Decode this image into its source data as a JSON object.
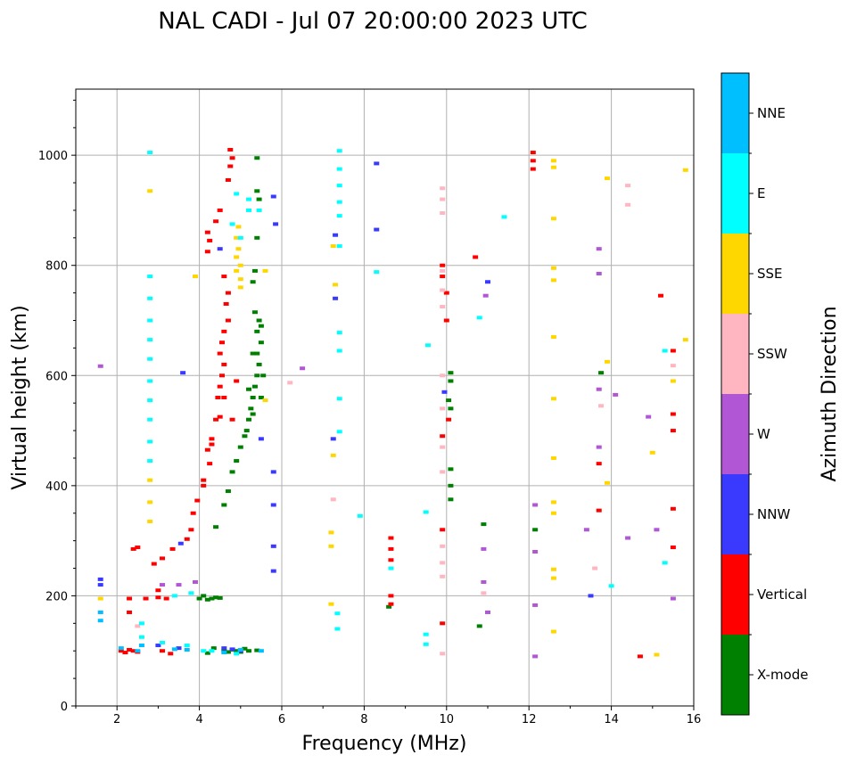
{
  "chart_data": {
    "type": "scatter",
    "title": "NAL CADI - Jul 07 20:00:00 2023 UTC",
    "xlabel": "Frequency (MHz)",
    "ylabel": "Virtual height (km)",
    "xlim": [
      1,
      16
    ],
    "ylim": [
      0,
      1120
    ],
    "xticks": [
      2,
      4,
      6,
      8,
      10,
      12,
      14,
      16
    ],
    "yticks": [
      0,
      200,
      400,
      600,
      800,
      1000
    ],
    "grid": true,
    "colorbar": {
      "label": "Azimuth Direction",
      "categories": [
        {
          "name": "X-mode",
          "color": "#008000"
        },
        {
          "name": "Vertical",
          "color": "#ff0000"
        },
        {
          "name": "NNW",
          "color": "#3a3aff"
        },
        {
          "name": "W",
          "color": "#b157d6"
        },
        {
          "name": "SSW",
          "color": "#ffb6c1"
        },
        {
          "name": "SSE",
          "color": "#ffd700"
        },
        {
          "name": "E",
          "color": "#00ffff"
        },
        {
          "name": "NNE",
          "color": "#00bfff"
        }
      ]
    },
    "series": [
      {
        "name": "X-mode",
        "points": [
          [
            4.6,
            100
          ],
          [
            4.7,
            98
          ],
          [
            4.8,
            102
          ],
          [
            4.9,
            100
          ],
          [
            5.0,
            98
          ],
          [
            5.1,
            104
          ],
          [
            5.2,
            100
          ],
          [
            5.4,
            101
          ],
          [
            4.2,
            96
          ],
          [
            4.35,
            105
          ],
          [
            4.3,
            195
          ],
          [
            4.4,
            197
          ],
          [
            4.2,
            193
          ],
          [
            4.0,
            195
          ],
          [
            4.5,
            196
          ],
          [
            4.1,
            200
          ],
          [
            4.4,
            325
          ],
          [
            4.6,
            365
          ],
          [
            4.7,
            390
          ],
          [
            4.8,
            425
          ],
          [
            4.9,
            445
          ],
          [
            5.0,
            470
          ],
          [
            5.1,
            490
          ],
          [
            5.15,
            500
          ],
          [
            5.2,
            520
          ],
          [
            5.25,
            540
          ],
          [
            5.3,
            560
          ],
          [
            5.35,
            580
          ],
          [
            5.4,
            600
          ],
          [
            5.45,
            620
          ],
          [
            5.3,
            640
          ],
          [
            5.5,
            660
          ],
          [
            5.4,
            680
          ],
          [
            5.45,
            700
          ],
          [
            5.35,
            715
          ],
          [
            5.3,
            770
          ],
          [
            5.35,
            790
          ],
          [
            5.4,
            850
          ],
          [
            5.45,
            920
          ],
          [
            5.4,
            935
          ],
          [
            5.4,
            995
          ],
          [
            5.2,
            575
          ],
          [
            5.3,
            530
          ],
          [
            5.5,
            560
          ],
          [
            5.4,
            640
          ],
          [
            5.55,
            600
          ],
          [
            5.5,
            690
          ],
          [
            10.1,
            375
          ],
          [
            10.1,
            400
          ],
          [
            10.1,
            430
          ],
          [
            10.1,
            540
          ],
          [
            10.1,
            590
          ],
          [
            10.05,
            555
          ],
          [
            10.1,
            605
          ],
          [
            8.6,
            180
          ],
          [
            10.8,
            145
          ],
          [
            10.9,
            330
          ],
          [
            12.15,
            320
          ],
          [
            13.75,
            605
          ]
        ]
      },
      {
        "name": "Vertical",
        "points": [
          [
            2.1,
            100
          ],
          [
            2.2,
            97
          ],
          [
            2.3,
            102
          ],
          [
            2.4,
            100
          ],
          [
            2.5,
            98
          ],
          [
            3.1,
            100
          ],
          [
            3.3,
            95
          ],
          [
            2.3,
            195
          ],
          [
            2.7,
            195
          ],
          [
            3.0,
            197
          ],
          [
            3.2,
            195
          ],
          [
            2.3,
            170
          ],
          [
            3.0,
            210
          ],
          [
            2.4,
            285
          ],
          [
            2.5,
            288
          ],
          [
            2.9,
            258
          ],
          [
            3.1,
            268
          ],
          [
            3.35,
            285
          ],
          [
            3.7,
            303
          ],
          [
            3.8,
            320
          ],
          [
            3.85,
            350
          ],
          [
            3.95,
            373
          ],
          [
            4.1,
            400
          ],
          [
            4.1,
            410
          ],
          [
            4.25,
            440
          ],
          [
            4.2,
            465
          ],
          [
            4.3,
            475
          ],
          [
            4.3,
            485
          ],
          [
            4.4,
            520
          ],
          [
            4.5,
            525
          ],
          [
            4.45,
            560
          ],
          [
            4.5,
            580
          ],
          [
            4.55,
            600
          ],
          [
            4.6,
            620
          ],
          [
            4.5,
            640
          ],
          [
            4.55,
            660
          ],
          [
            4.6,
            680
          ],
          [
            4.7,
            700
          ],
          [
            4.65,
            730
          ],
          [
            4.7,
            750
          ],
          [
            4.6,
            780
          ],
          [
            4.2,
            825
          ],
          [
            4.25,
            845
          ],
          [
            4.2,
            860
          ],
          [
            4.4,
            880
          ],
          [
            4.5,
            900
          ],
          [
            4.7,
            955
          ],
          [
            4.75,
            980
          ],
          [
            4.8,
            995
          ],
          [
            4.75,
            1010
          ],
          [
            4.8,
            520
          ],
          [
            4.9,
            590
          ],
          [
            4.6,
            560
          ],
          [
            8.65,
            265
          ],
          [
            8.65,
            285
          ],
          [
            8.65,
            305
          ],
          [
            8.65,
            200
          ],
          [
            8.65,
            185
          ],
          [
            10.0,
            750
          ],
          [
            10.0,
            700
          ],
          [
            9.9,
            800
          ],
          [
            9.9,
            780
          ],
          [
            9.9,
            490
          ],
          [
            9.9,
            320
          ],
          [
            9.9,
            150
          ],
          [
            10.05,
            520
          ],
          [
            10.7,
            815
          ],
          [
            12.1,
            975
          ],
          [
            12.1,
            990
          ],
          [
            12.1,
            1005
          ],
          [
            13.7,
            440
          ],
          [
            13.7,
            355
          ],
          [
            14.7,
            90
          ],
          [
            15.2,
            745
          ],
          [
            15.5,
            645
          ],
          [
            15.5,
            530
          ],
          [
            15.5,
            500
          ],
          [
            15.5,
            358
          ],
          [
            15.5,
            288
          ]
        ]
      },
      {
        "name": "NNW",
        "points": [
          [
            1.6,
            220
          ],
          [
            1.6,
            230
          ],
          [
            4.6,
            105
          ],
          [
            4.8,
            103
          ],
          [
            5.0,
            100
          ],
          [
            3.5,
            105
          ],
          [
            3.0,
            110
          ],
          [
            3.6,
            605
          ],
          [
            5.5,
            485
          ],
          [
            5.8,
            925
          ],
          [
            5.85,
            875
          ],
          [
            5.8,
            425
          ],
          [
            5.8,
            365
          ],
          [
            5.8,
            290
          ],
          [
            5.8,
            245
          ],
          [
            3.55,
            295
          ],
          [
            4.5,
            830
          ],
          [
            8.3,
            985
          ],
          [
            8.3,
            865
          ],
          [
            7.3,
            740
          ],
          [
            7.3,
            855
          ],
          [
            7.25,
            485
          ],
          [
            11.0,
            770
          ],
          [
            13.5,
            200
          ],
          [
            9.95,
            570
          ]
        ]
      },
      {
        "name": "W",
        "points": [
          [
            1.6,
            617
          ],
          [
            6.5,
            613
          ],
          [
            3.9,
            225
          ],
          [
            3.5,
            220
          ],
          [
            3.1,
            220
          ],
          [
            10.95,
            745
          ],
          [
            10.9,
            285
          ],
          [
            10.9,
            225
          ],
          [
            11.0,
            170
          ],
          [
            12.15,
            365
          ],
          [
            12.15,
            280
          ],
          [
            12.15,
            183
          ],
          [
            12.15,
            90
          ],
          [
            13.7,
            830
          ],
          [
            13.7,
            785
          ],
          [
            13.7,
            575
          ],
          [
            13.7,
            470
          ],
          [
            14.1,
            565
          ],
          [
            13.4,
            320
          ],
          [
            14.4,
            305
          ],
          [
            14.9,
            525
          ],
          [
            15.1,
            320
          ],
          [
            15.5,
            195
          ]
        ]
      },
      {
        "name": "SSW",
        "points": [
          [
            6.2,
            587
          ],
          [
            2.5,
            145
          ],
          [
            7.25,
            375
          ],
          [
            9.9,
            940
          ],
          [
            9.9,
            920
          ],
          [
            9.9,
            895
          ],
          [
            9.9,
            790
          ],
          [
            9.9,
            755
          ],
          [
            9.9,
            725
          ],
          [
            9.9,
            600
          ],
          [
            9.9,
            540
          ],
          [
            9.9,
            470
          ],
          [
            9.9,
            425
          ],
          [
            9.9,
            290
          ],
          [
            9.9,
            260
          ],
          [
            9.9,
            235
          ],
          [
            9.9,
            95
          ],
          [
            10.9,
            205
          ],
          [
            13.6,
            250
          ],
          [
            13.75,
            545
          ],
          [
            14.4,
            945
          ],
          [
            14.4,
            910
          ],
          [
            15.5,
            618
          ]
        ]
      },
      {
        "name": "SSE",
        "points": [
          [
            1.6,
            195
          ],
          [
            3.9,
            780
          ],
          [
            4.9,
            850
          ],
          [
            4.95,
            830
          ],
          [
            4.9,
            815
          ],
          [
            5.0,
            800
          ],
          [
            4.9,
            790
          ],
          [
            5.0,
            775
          ],
          [
            5.0,
            760
          ],
          [
            5.6,
            790
          ],
          [
            5.6,
            555
          ],
          [
            4.95,
            870
          ],
          [
            2.8,
            935
          ],
          [
            2.8,
            410
          ],
          [
            2.8,
            370
          ],
          [
            2.8,
            335
          ],
          [
            7.25,
            835
          ],
          [
            7.3,
            765
          ],
          [
            7.25,
            455
          ],
          [
            7.2,
            315
          ],
          [
            7.2,
            185
          ],
          [
            7.2,
            290
          ],
          [
            12.6,
            990
          ],
          [
            12.6,
            978
          ],
          [
            12.6,
            885
          ],
          [
            12.6,
            795
          ],
          [
            12.6,
            773
          ],
          [
            12.6,
            670
          ],
          [
            12.6,
            558
          ],
          [
            12.6,
            450
          ],
          [
            12.6,
            370
          ],
          [
            12.6,
            350
          ],
          [
            12.6,
            248
          ],
          [
            12.6,
            232
          ],
          [
            12.6,
            135
          ],
          [
            13.9,
            958
          ],
          [
            13.9,
            625
          ],
          [
            13.9,
            405
          ],
          [
            15.0,
            460
          ],
          [
            15.1,
            93
          ],
          [
            15.8,
            973
          ],
          [
            15.8,
            665
          ],
          [
            15.5,
            590
          ]
        ]
      },
      {
        "name": "E",
        "points": [
          [
            2.8,
            1005
          ],
          [
            2.8,
            700
          ],
          [
            2.8,
            630
          ],
          [
            2.8,
            555
          ],
          [
            2.8,
            520
          ],
          [
            2.8,
            480
          ],
          [
            2.8,
            445
          ],
          [
            2.8,
            590
          ],
          [
            2.8,
            740
          ],
          [
            2.8,
            780
          ],
          [
            2.8,
            665
          ],
          [
            2.6,
            125
          ],
          [
            3.1,
            115
          ],
          [
            3.7,
            110
          ],
          [
            4.1,
            100
          ],
          [
            4.3,
            100
          ],
          [
            4.9,
            95
          ],
          [
            4.9,
            930
          ],
          [
            4.8,
            875
          ],
          [
            5.0,
            850
          ],
          [
            5.2,
            920
          ],
          [
            5.2,
            900
          ],
          [
            5.45,
            900
          ],
          [
            2.6,
            150
          ],
          [
            3.4,
            200
          ],
          [
            3.8,
            205
          ],
          [
            7.4,
            1008
          ],
          [
            7.4,
            975
          ],
          [
            7.4,
            945
          ],
          [
            7.4,
            915
          ],
          [
            7.4,
            890
          ],
          [
            7.4,
            835
          ],
          [
            7.4,
            678
          ],
          [
            7.4,
            645
          ],
          [
            7.4,
            558
          ],
          [
            7.4,
            498
          ],
          [
            7.35,
            168
          ],
          [
            7.35,
            140
          ],
          [
            7.9,
            345
          ],
          [
            8.3,
            788
          ],
          [
            8.65,
            250
          ],
          [
            9.5,
            352
          ],
          [
            9.5,
            130
          ],
          [
            9.5,
            112
          ],
          [
            9.55,
            655
          ],
          [
            10.8,
            705
          ],
          [
            11.4,
            888
          ],
          [
            14.0,
            218
          ],
          [
            15.3,
            645
          ],
          [
            15.3,
            260
          ]
        ]
      },
      {
        "name": "NNE",
        "points": [
          [
            1.6,
            155
          ],
          [
            1.6,
            170
          ],
          [
            2.1,
            105
          ],
          [
            2.5,
            100
          ],
          [
            2.6,
            110
          ],
          [
            3.4,
            103
          ],
          [
            3.7,
            102
          ],
          [
            4.6,
            97
          ],
          [
            5.0,
            102
          ],
          [
            5.5,
            100
          ]
        ]
      }
    ]
  }
}
